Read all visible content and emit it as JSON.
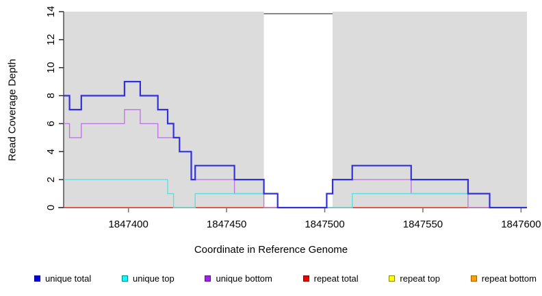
{
  "chart_data": {
    "type": "line",
    "subtype": "step-coverage",
    "xlabel": "Coordinate in Reference Genome",
    "ylabel": "Read Coverage Depth",
    "xlim": [
      1847367,
      1847603
    ],
    "ylim": [
      0,
      14
    ],
    "x_ticks": [
      1847400,
      1847450,
      1847500,
      1847550,
      1847600
    ],
    "y_ticks": [
      0,
      2,
      4,
      6,
      8,
      10,
      12,
      14
    ],
    "grid": false,
    "plot_bg_color": "#dcdcdc",
    "masked_region": {
      "start": 1847469,
      "end": 1847504,
      "fill": "#ffffff",
      "top_line_color": "#888888"
    },
    "legend_position": "bottom",
    "draw_order": [
      "repeat bottom",
      "repeat top",
      "repeat total",
      "unique bottom",
      "unique top",
      "unique total"
    ],
    "series": [
      {
        "name": "unique total",
        "line_color": "#3030dd",
        "legend_fill": "#0000ee",
        "legend_border": "#000088",
        "line_width": 2.2,
        "points": [
          [
            1847367,
            8
          ],
          [
            1847370,
            7
          ],
          [
            1847376,
            8
          ],
          [
            1847398,
            9
          ],
          [
            1847406,
            8
          ],
          [
            1847415,
            7
          ],
          [
            1847420,
            6
          ],
          [
            1847423,
            5
          ],
          [
            1847426,
            4
          ],
          [
            1847432,
            2
          ],
          [
            1847434,
            3
          ],
          [
            1847454,
            2
          ],
          [
            1847469,
            1
          ],
          [
            1847476,
            0
          ],
          [
            1847501,
            1
          ],
          [
            1847504,
            2
          ],
          [
            1847514,
            3
          ],
          [
            1847544,
            2
          ],
          [
            1847573,
            1
          ],
          [
            1847584,
            0
          ]
        ]
      },
      {
        "name": "unique top",
        "line_color": "#5fdede",
        "legend_fill": "#00ffff",
        "legend_border": "#008888",
        "line_width": 1.4,
        "points": [
          [
            1847367,
            2
          ],
          [
            1847420,
            1
          ],
          [
            1847423,
            0
          ],
          [
            1847434,
            1
          ],
          [
            1847476,
            0
          ],
          [
            1847514,
            1
          ],
          [
            1847584,
            0
          ]
        ]
      },
      {
        "name": "unique bottom",
        "line_color": "#bb79dd",
        "legend_fill": "#a020f0",
        "legend_border": "#5c1090",
        "line_width": 1.4,
        "points": [
          [
            1847367,
            6
          ],
          [
            1847370,
            5
          ],
          [
            1847376,
            6
          ],
          [
            1847398,
            7
          ],
          [
            1847406,
            6
          ],
          [
            1847415,
            5
          ],
          [
            1847426,
            4
          ],
          [
            1847432,
            2
          ],
          [
            1847454,
            1
          ],
          [
            1847469,
            0
          ],
          [
            1847501,
            1
          ],
          [
            1847504,
            2
          ],
          [
            1847544,
            1
          ],
          [
            1847573,
            0
          ]
        ]
      },
      {
        "name": "repeat total",
        "line_color": "#dd3344",
        "legend_fill": "#ee0000",
        "legend_border": "#880000",
        "line_width": 1.4,
        "points": [
          [
            1847367,
            0
          ]
        ]
      },
      {
        "name": "repeat top",
        "line_color": "#eeee44",
        "legend_fill": "#ffff00",
        "legend_border": "#888800",
        "line_width": 1.4,
        "points": [
          [
            1847367,
            0
          ]
        ]
      },
      {
        "name": "repeat bottom",
        "line_color": "#ff9d1e",
        "legend_fill": "#ffa000",
        "legend_border": "#a05f00",
        "line_width": 1.6,
        "points": [
          [
            1847367,
            0
          ]
        ]
      }
    ],
    "axis_color": "#2b2b2b",
    "tick_color": "#707070",
    "text_color": "#000000"
  }
}
